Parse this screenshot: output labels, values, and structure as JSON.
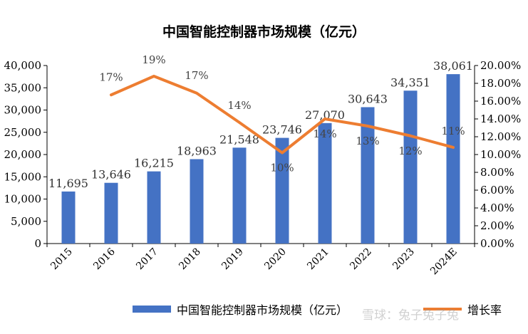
{
  "chart_data": {
    "type": "bar",
    "title": "中国智能控制器市场规模（亿元）",
    "categories": [
      "2015",
      "2016",
      "2017",
      "2018",
      "2019",
      "2020",
      "2021",
      "2022",
      "2023",
      "2024E"
    ],
    "series": [
      {
        "name": "中国智能控制器市场规模（亿元）",
        "type": "bar",
        "axis": "left",
        "values": [
          11695,
          13646,
          16215,
          18963,
          21548,
          23746,
          27070,
          30643,
          34351,
          38061
        ],
        "labels": [
          "11,695",
          "13,646",
          "16,215",
          "18,963",
          "21,548",
          "23,746",
          "27,070",
          "30,643",
          "34,351",
          "38,061"
        ],
        "color": "#4472C4"
      },
      {
        "name": "增长率",
        "type": "line",
        "axis": "right",
        "values": [
          null,
          16.7,
          18.8,
          16.9,
          13.6,
          10.2,
          14.0,
          13.2,
          12.1,
          10.8
        ],
        "labels": [
          "",
          "17%",
          "19%",
          "17%",
          "14%",
          "10%",
          "14%",
          "13%",
          "12%",
          "11%"
        ],
        "color": "#ED7D31"
      }
    ],
    "y_left": {
      "range": [
        0,
        40000
      ],
      "ticks": [
        0,
        5000,
        10000,
        15000,
        20000,
        25000,
        30000,
        35000,
        40000
      ],
      "tick_labels": [
        "0",
        "5,000",
        "10,000",
        "15,000",
        "20,000",
        "25,000",
        "30,000",
        "35,000",
        "40,000"
      ]
    },
    "y_right": {
      "range": [
        0,
        20
      ],
      "ticks": [
        0,
        2,
        4,
        6,
        8,
        10,
        12,
        14,
        16,
        18,
        20
      ],
      "tick_labels": [
        "0.00%",
        "2.00%",
        "4.00%",
        "6.00%",
        "8.00%",
        "10.00%",
        "12.00%",
        "14.00%",
        "16.00%",
        "18.00%",
        "20.00%"
      ]
    },
    "grid": false,
    "legend_position": "bottom"
  },
  "legend": {
    "bar_label": "中国智能控制器市场规模（亿元）",
    "line_label": "增长率"
  },
  "watermark": "雪球：兔子兔子兔"
}
